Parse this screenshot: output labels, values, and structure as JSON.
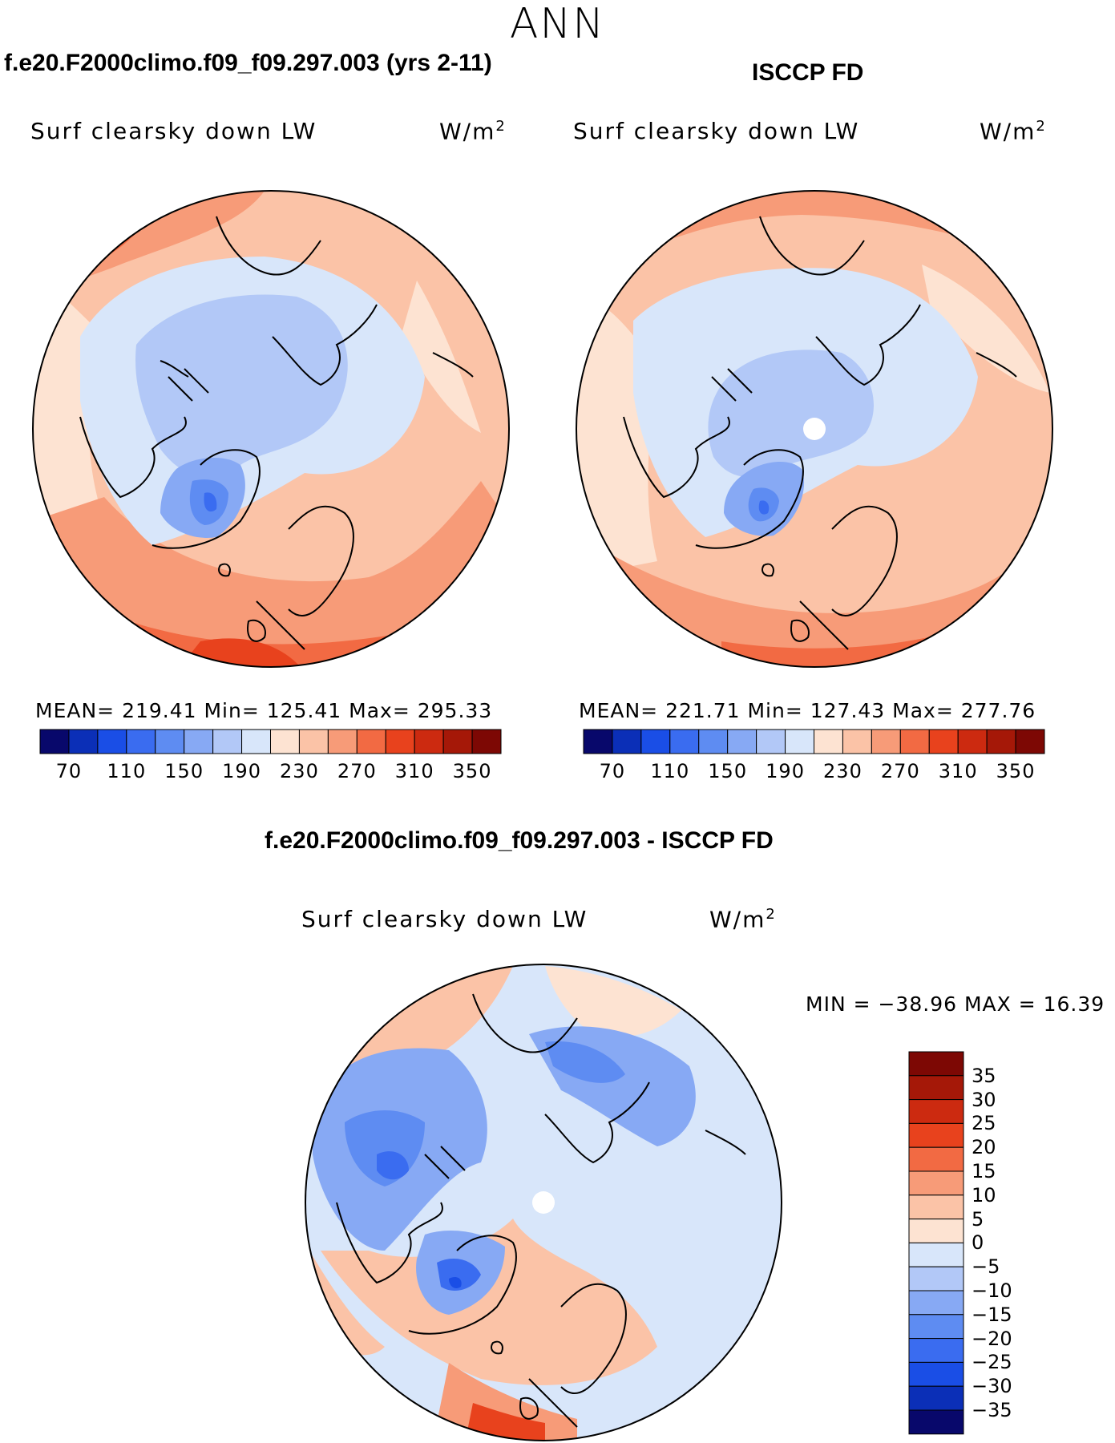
{
  "season": "ANN",
  "panels": {
    "model": {
      "title": "f.e20.F2000climo.f09_f09.297.003 (yrs 2-11)",
      "variable": "Surf clearsky down LW",
      "units": "W/m",
      "units_sup": "2",
      "stats": "MEAN= 219.41   Min= 125.41   Max= 295.33",
      "mean": 219.41,
      "min": 125.41,
      "max": 295.33
    },
    "obs": {
      "title": "ISCCP FD",
      "variable": "Surf clearsky down LW",
      "units": "W/m",
      "units_sup": "2",
      "stats": "MEAN= 221.71   Min= 127.43   Max= 277.76",
      "mean": 221.71,
      "min": 127.43,
      "max": 277.76
    },
    "diff": {
      "title": "f.e20.F2000climo.f09_f09.297.003 - ISCCP FD",
      "variable": "Surf clearsky down LW",
      "units": "W/m",
      "units_sup": "2",
      "stats": "MIN = −38.96 MAX =   16.39",
      "min": -38.96,
      "max": 16.39
    }
  },
  "colorbar_abs": {
    "colors": [
      "#08086b",
      "#0b2fb7",
      "#1a4ee6",
      "#3a6cf0",
      "#5e8cf2",
      "#87a9f4",
      "#b2c8f7",
      "#d8e6fa",
      "#fde3d2",
      "#fbc3a7",
      "#f79b78",
      "#f26a43",
      "#e8421d",
      "#cc2a10",
      "#a51808",
      "#7d0804"
    ],
    "labels": [
      "70",
      "110",
      "150",
      "190",
      "230",
      "270",
      "310",
      "350"
    ]
  },
  "colorbar_diff": {
    "colors": [
      "#7d0804",
      "#a51808",
      "#cc2a10",
      "#e8421d",
      "#f26a43",
      "#f79b78",
      "#fbc3a7",
      "#fde3d2",
      "#d8e6fa",
      "#b2c8f7",
      "#87a9f4",
      "#5e8cf2",
      "#3a6cf0",
      "#1a4ee6",
      "#0b2fb7",
      "#08086b"
    ],
    "labels": [
      "35",
      "30",
      "25",
      "20",
      "15",
      "10",
      "5",
      "0",
      "−5",
      "−10",
      "−15",
      "−20",
      "−25",
      "−30",
      "−35"
    ]
  }
}
